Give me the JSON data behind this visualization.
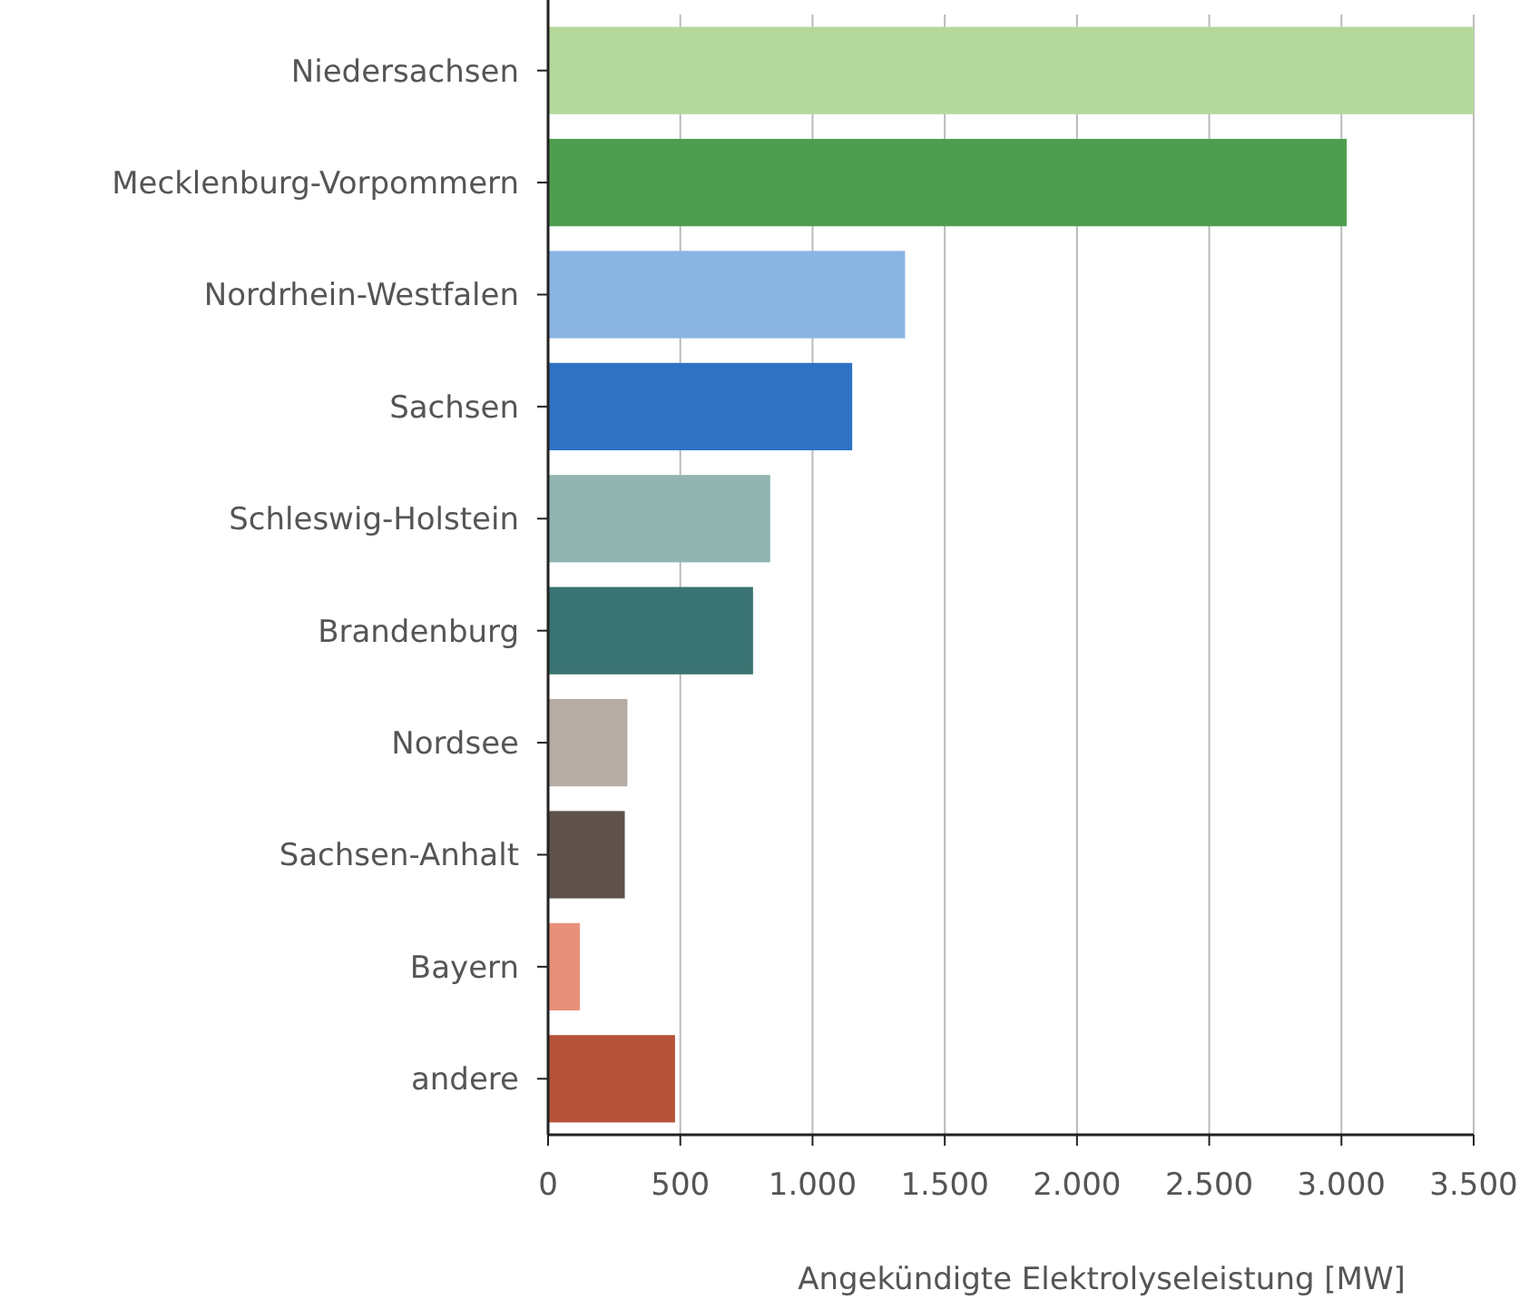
{
  "chart_data": {
    "type": "bar",
    "orientation": "horizontal",
    "xlabel": "Angekündigte Elektrolyseleistung [MW]",
    "categories": [
      "Niedersachsen",
      "Mecklenburg-Vorpommern",
      "Nordrhein-Westfalen",
      "Sachsen",
      "Schleswig-Holstein",
      "Brandenburg",
      "Nordsee",
      "Sachsen-Anhalt",
      "Bayern",
      "andere"
    ],
    "values": [
      3500,
      3020,
      1350,
      1150,
      840,
      775,
      300,
      290,
      120,
      480
    ],
    "colors": [
      "#b5d99c",
      "#4f9e4f",
      "#8ab4e2",
      "#2f72c4",
      "#92b5b2",
      "#3a7472",
      "#b6aca5",
      "#5f514b",
      "#e8907a",
      "#b5533a"
    ],
    "xlim": [
      0,
      3500
    ],
    "xticks": [
      0,
      500,
      {
        "value": 1000,
        "label": "1.000"
      },
      {
        "value": 1500,
        "label": "1.500"
      },
      {
        "value": 2000,
        "label": "2.000"
      },
      {
        "value": 2500,
        "label": "2.500"
      },
      {
        "value": 3000,
        "label": "3.000"
      },
      {
        "value": 3500,
        "label": "3.500"
      }
    ],
    "grid": "x"
  }
}
